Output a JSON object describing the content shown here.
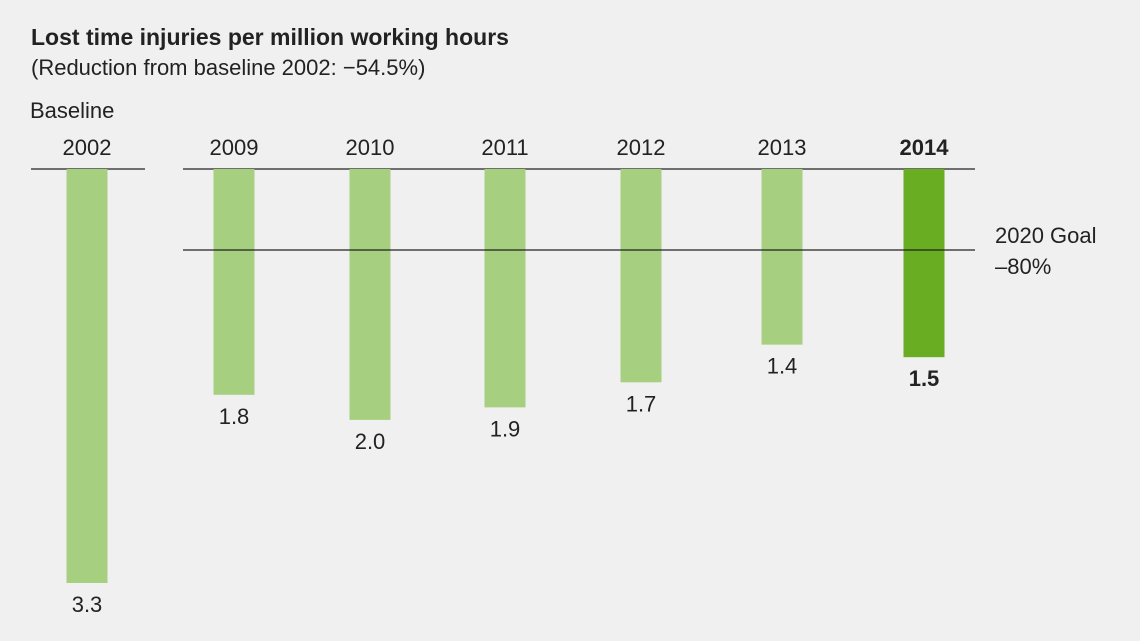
{
  "header": {
    "title": "Lost time injuries per million working hours",
    "subtitle": "(Reduction from baseline 2002: −54.5%)",
    "baseline_label": "Baseline"
  },
  "goal": {
    "label_line1": "2020 Goal",
    "label_line2": "–80%"
  },
  "colors": {
    "bar": "#a6cf7f",
    "highlight_bar": "#68ad22",
    "background": "#f0f0f0",
    "text": "#222222",
    "axis_line": "#222222"
  },
  "chart_data": {
    "type": "bar",
    "orientation": "vertical-downward",
    "title": "Lost time injuries per million working hours",
    "subtitle": "(Reduction from baseline 2002: −54.5%)",
    "categories": [
      "2002",
      "2009",
      "2010",
      "2011",
      "2012",
      "2013",
      "2014"
    ],
    "values": [
      3.3,
      1.8,
      2.0,
      1.9,
      1.7,
      1.4,
      1.5
    ],
    "value_labels": [
      "3.3",
      "1.8",
      "2.0",
      "1.9",
      "1.7",
      "1.4",
      "1.5"
    ],
    "highlight_category": "2014",
    "baseline_category": "2002",
    "ylim": [
      0,
      3.3
    ],
    "reference_line": {
      "value": 0.66,
      "label": "2020 Goal –80%"
    },
    "legend": "none",
    "grid": false
  }
}
